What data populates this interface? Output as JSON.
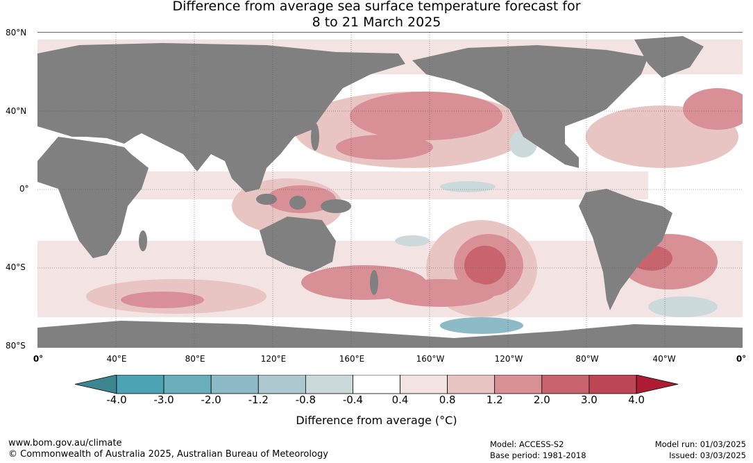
{
  "title_line1": "Difference from average sea surface temperature forecast for",
  "title_line2": "8 to 21 March 2025",
  "lat_labels": [
    "80°N",
    "40°N",
    "0°",
    "40°S",
    "80°S"
  ],
  "lon_labels": [
    "0°",
    "40°E",
    "80°E",
    "120°E",
    "160°E",
    "160°W",
    "120°W",
    "80°W",
    "40°W",
    "0°"
  ],
  "colorbar": {
    "ticks": [
      "-4.0",
      "-3.0",
      "-2.0",
      "-1.2",
      "-0.8",
      "-0.4",
      "0.4",
      "0.8",
      "1.2",
      "2.0",
      "3.0",
      "4.0"
    ],
    "colors": [
      "#4ba3b4",
      "#6aaebb",
      "#8cbac6",
      "#aec8cf",
      "#ccd9db",
      "#ffffff",
      "#f4e3e3",
      "#e8c4c2",
      "#d98f96",
      "#c8646e",
      "#bd4755"
    ],
    "under_color": "#3d8691",
    "over_color": "#ad1c33",
    "label": "Difference from average (°C)"
  },
  "footer": {
    "website": "www.bom.gov.au/climate",
    "copyright": "© Commonwealth of Australia 2025, Australian Bureau of Meteorology",
    "model": "Model: ACCESS-S2",
    "base_period": "Base period: 1981-2018",
    "model_run": "Model run: 01/03/2025",
    "issued": "Issued: 03/03/2025"
  },
  "colors": {
    "land": "#808080",
    "grid": "#555555"
  }
}
